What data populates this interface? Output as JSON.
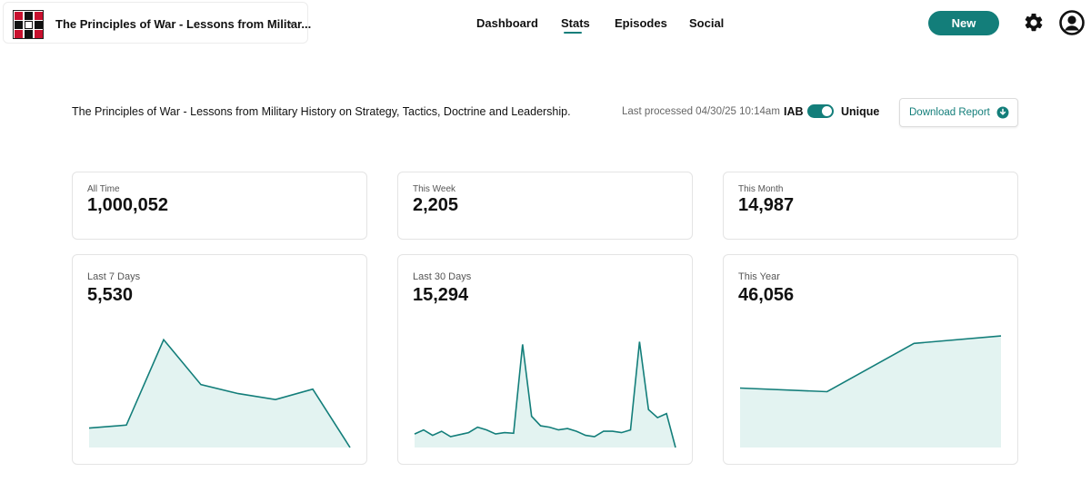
{
  "header": {
    "podcast_title": "The Principles of War - Lessons from Militar...",
    "nav": [
      {
        "label": "Dashboard"
      },
      {
        "label": "Stats"
      },
      {
        "label": "Episodes"
      },
      {
        "label": "Social"
      }
    ],
    "active_nav": "Stats",
    "new_label": "New"
  },
  "info": {
    "full_title": "The Principles of War - Lessons from Military History on Strategy, Tactics, Doctrine and Leadership.",
    "last_processed": "Last processed 04/30/25 10:14am",
    "iab_label": "IAB",
    "unique_label": "Unique",
    "unique_enabled": true,
    "download_label": "Download Report"
  },
  "colors": {
    "accent": "#137e7a",
    "fill": "#e3f3f1"
  },
  "stats": [
    {
      "label": "All Time",
      "value": "1,000,052"
    },
    {
      "label": "This Week",
      "value": "2,205"
    },
    {
      "label": "This Month",
      "value": "14,987"
    }
  ],
  "chart_data": [
    {
      "type": "area",
      "title": "Last 7 Days",
      "headline": "5,530",
      "values": [
        560,
        580,
        1150,
        850,
        790,
        750,
        820,
        430
      ],
      "ylim": [
        430,
        1200
      ]
    },
    {
      "type": "area",
      "title": "Last 30 Days",
      "headline": "15,294",
      "values": [
        400,
        430,
        390,
        420,
        380,
        395,
        410,
        450,
        430,
        400,
        410,
        405,
        1060,
        530,
        460,
        450,
        430,
        440,
        420,
        390,
        380,
        420,
        420,
        410,
        430,
        1080,
        580,
        520,
        550,
        300
      ],
      "ylim": [
        300,
        1150
      ]
    },
    {
      "type": "area",
      "title": "This Year",
      "headline": "46,056",
      "values": [
        8000,
        7500,
        14000,
        15000
      ],
      "ylim": [
        0,
        15500
      ]
    }
  ]
}
